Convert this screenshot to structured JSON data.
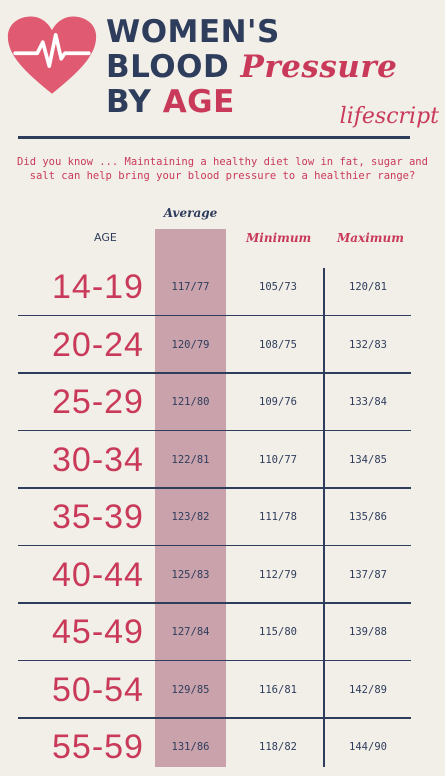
{
  "header": {
    "title_line1": "WOMEN'S",
    "title_line2_a": "BLOOD",
    "title_line2_b": "Pressure",
    "title_line3_a": "BY",
    "title_line3_b": "AGE",
    "brand": "lifescript"
  },
  "note": "Did you know ... Maintaining a healthy diet low in fat, sugar and salt can help bring your blood pressure to a healthier range?",
  "columns": {
    "age": "AGE",
    "average": "Average",
    "minimum": "Minimum",
    "maximum": "Maximum"
  },
  "rows": [
    {
      "age": "14-19",
      "avg": "117/77",
      "min": "105/73",
      "max": "120/81"
    },
    {
      "age": "20-24",
      "avg": "120/79",
      "min": "108/75",
      "max": "132/83"
    },
    {
      "age": "25-29",
      "avg": "121/80",
      "min": "109/76",
      "max": "133/84"
    },
    {
      "age": "30-34",
      "avg": "122/81",
      "min": "110/77",
      "max": "134/85"
    },
    {
      "age": "35-39",
      "avg": "123/82",
      "min": "111/78",
      "max": "135/86"
    },
    {
      "age": "40-44",
      "avg": "125/83",
      "min": "112/79",
      "max": "137/87"
    },
    {
      "age": "45-49",
      "avg": "127/84",
      "min": "115/80",
      "max": "139/88"
    },
    {
      "age": "50-54",
      "avg": "129/85",
      "min": "116/81",
      "max": "142/89"
    },
    {
      "age": "55-59",
      "avg": "131/86",
      "min": "118/82",
      "max": "144/90"
    }
  ],
  "colors": {
    "accent": "#c93a5a",
    "navy": "#2f3d5c",
    "average_column": "#c9a2ab",
    "background": "#f2efe8"
  },
  "icons": [
    "heart-pulse-icon"
  ]
}
